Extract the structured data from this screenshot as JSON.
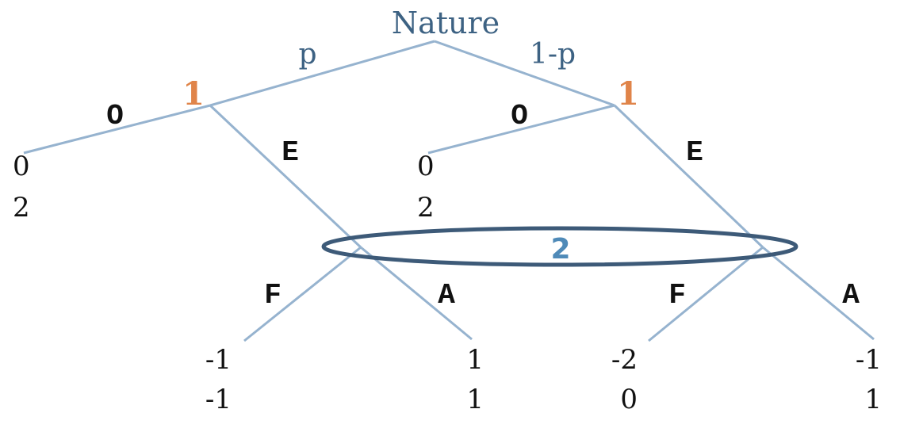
{
  "nature_label": "Nature",
  "probabilities": {
    "left": "p",
    "right": "1-p"
  },
  "players": {
    "first_left": "1",
    "first_right": "1",
    "second": "2"
  },
  "actions": {
    "out_left": "O",
    "enter_left": "E",
    "out_right": "O",
    "enter_right": "E",
    "fight_left": "F",
    "accept_left": "A",
    "fight_right": "F",
    "accept_right": "A"
  },
  "payoffs": {
    "out_left": {
      "top": "0",
      "bottom": "2"
    },
    "out_right": {
      "top": "0",
      "bottom": "2"
    },
    "fight_left": {
      "top": "-1",
      "bottom": "-1"
    },
    "accept_left": {
      "top": "1",
      "bottom": "1"
    },
    "fight_right": {
      "top": "-2",
      "bottom": "0"
    },
    "accept_right": {
      "top": "-1",
      "bottom": "1"
    }
  }
}
